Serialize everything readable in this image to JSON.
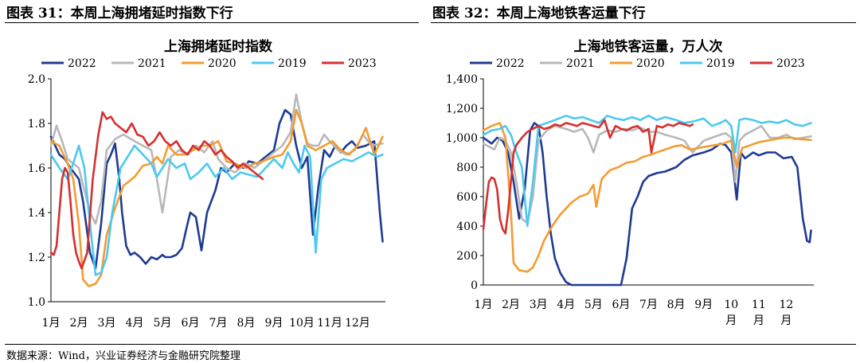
{
  "figures": [
    {
      "label": "图表 31：本周上海拥堵延时指数下行"
    },
    {
      "label": "图表 32：本周上海地铁客运量下行"
    }
  ],
  "source": "数据来源：Wind，兴业证券经济与金融研究院整理",
  "chart_data": [
    {
      "type": "line",
      "title": "上海拥堵延时指数",
      "xlabel": "",
      "ylabel": "",
      "ylim": [
        1.0,
        2.0
      ],
      "yticks": [
        "1.0",
        "1.2",
        "1.4",
        "1.6",
        "1.8",
        "2.0"
      ],
      "xticks": [
        "1月",
        "2月",
        "3月",
        "4月",
        "5月",
        "6月",
        "7月",
        "8月",
        "9月",
        "10月",
        "11月",
        "12月"
      ],
      "x_unit": "month (1.0 = Jan 1)",
      "legend_position": "top",
      "series": [
        {
          "name": "2022",
          "color": "#1f3a93",
          "x": [
            1.0,
            1.15,
            1.3,
            1.5,
            1.7,
            2.0,
            2.15,
            2.4,
            2.6,
            2.8,
            3.0,
            3.15,
            3.3,
            3.45,
            3.55,
            3.7,
            3.85,
            4.0,
            4.2,
            4.4,
            4.6,
            4.8,
            5.0,
            5.1,
            5.3,
            5.5,
            5.7,
            5.9,
            6.0,
            6.2,
            6.4,
            6.6,
            6.9,
            7.1,
            7.3,
            7.6,
            7.9,
            8.1,
            8.4,
            8.7,
            9.0,
            9.2,
            9.4,
            9.6,
            9.8,
            10.0,
            10.2,
            10.4,
            10.6,
            10.8,
            11.0,
            11.2,
            11.4,
            11.6,
            11.8,
            12.0,
            12.3,
            12.6,
            12.8,
            12.9
          ],
          "y": [
            1.74,
            1.7,
            1.66,
            1.64,
            1.6,
            1.55,
            1.45,
            1.22,
            1.15,
            1.35,
            1.62,
            1.66,
            1.71,
            1.55,
            1.4,
            1.25,
            1.21,
            1.22,
            1.2,
            1.17,
            1.2,
            1.19,
            1.21,
            1.2,
            1.2,
            1.21,
            1.24,
            1.35,
            1.4,
            1.38,
            1.23,
            1.4,
            1.5,
            1.6,
            1.58,
            1.62,
            1.6,
            1.63,
            1.62,
            1.65,
            1.68,
            1.8,
            1.86,
            1.84,
            1.7,
            1.6,
            1.65,
            1.3,
            1.52,
            1.68,
            1.65,
            1.7,
            1.67,
            1.7,
            1.72,
            1.69,
            1.7,
            1.72,
            1.4,
            1.27
          ]
        },
        {
          "name": "2021",
          "color": "#b8b8b8",
          "x": [
            1.0,
            1.2,
            1.4,
            1.6,
            1.8,
            2.0,
            2.2,
            2.4,
            2.6,
            2.8,
            3.0,
            3.3,
            3.6,
            4.0,
            4.3,
            4.6,
            4.8,
            5.0,
            5.3,
            5.6,
            5.9,
            6.2,
            6.5,
            6.8,
            7.0,
            7.3,
            7.6,
            8.0,
            8.3,
            8.6,
            9.0,
            9.3,
            9.6,
            9.8,
            10.0,
            10.2,
            10.4,
            10.6,
            10.8,
            11.0,
            11.3,
            11.6,
            11.9,
            12.2,
            12.5,
            12.9
          ],
          "y": [
            1.7,
            1.79,
            1.72,
            1.64,
            1.62,
            1.6,
            1.5,
            1.4,
            1.35,
            1.45,
            1.68,
            1.73,
            1.75,
            1.72,
            1.7,
            1.68,
            1.55,
            1.4,
            1.65,
            1.68,
            1.66,
            1.7,
            1.67,
            1.72,
            1.64,
            1.6,
            1.58,
            1.62,
            1.6,
            1.63,
            1.67,
            1.7,
            1.76,
            1.93,
            1.8,
            1.71,
            1.7,
            1.7,
            1.75,
            1.72,
            1.68,
            1.66,
            1.68,
            1.75,
            1.7,
            1.71
          ]
        },
        {
          "name": "2020",
          "color": "#f39c32",
          "x": [
            1.0,
            1.3,
            1.6,
            1.8,
            2.0,
            2.15,
            2.35,
            2.6,
            2.8,
            3.0,
            3.3,
            3.6,
            4.0,
            4.3,
            4.6,
            4.8,
            5.0,
            5.2,
            5.5,
            5.8,
            6.1,
            6.4,
            6.7,
            7.0,
            7.3,
            7.6,
            8.0,
            8.3,
            8.6,
            9.0,
            9.3,
            9.6,
            9.8,
            10.0,
            10.2,
            10.5,
            10.8,
            11.1,
            11.4,
            11.7,
            12.0,
            12.3,
            12.6,
            12.9
          ],
          "y": [
            1.72,
            1.7,
            1.62,
            1.55,
            1.35,
            1.1,
            1.07,
            1.08,
            1.12,
            1.3,
            1.42,
            1.52,
            1.56,
            1.61,
            1.62,
            1.65,
            1.62,
            1.7,
            1.66,
            1.66,
            1.68,
            1.7,
            1.7,
            1.72,
            1.63,
            1.62,
            1.6,
            1.62,
            1.63,
            1.65,
            1.66,
            1.72,
            1.86,
            1.8,
            1.7,
            1.68,
            1.7,
            1.72,
            1.68,
            1.66,
            1.7,
            1.78,
            1.66,
            1.74
          ]
        },
        {
          "name": "2019",
          "color": "#4cc9f0",
          "x": [
            1.0,
            1.3,
            1.6,
            1.8,
            2.0,
            2.2,
            2.4,
            2.6,
            2.8,
            3.0,
            3.2,
            3.5,
            3.8,
            4.0,
            4.3,
            4.6,
            4.8,
            5.0,
            5.2,
            5.5,
            5.8,
            6.0,
            6.3,
            6.6,
            6.9,
            7.2,
            7.5,
            7.8,
            8.1,
            8.4,
            8.7,
            9.0,
            9.3,
            9.5,
            9.7,
            9.9,
            10.1,
            10.3,
            10.5,
            10.7,
            10.9,
            11.2,
            11.5,
            11.8,
            12.1,
            12.4,
            12.7,
            12.9
          ],
          "y": [
            1.66,
            1.6,
            1.55,
            1.62,
            1.7,
            1.6,
            1.35,
            1.12,
            1.13,
            1.2,
            1.4,
            1.6,
            1.66,
            1.7,
            1.66,
            1.62,
            1.56,
            1.6,
            1.64,
            1.6,
            1.62,
            1.55,
            1.58,
            1.62,
            1.56,
            1.6,
            1.55,
            1.58,
            1.57,
            1.56,
            1.6,
            1.64,
            1.6,
            1.67,
            1.62,
            1.58,
            1.7,
            1.65,
            1.22,
            1.55,
            1.6,
            1.62,
            1.64,
            1.63,
            1.65,
            1.67,
            1.65,
            1.66
          ]
        },
        {
          "name": "2023",
          "color": "#d62f2f",
          "x": [
            1.0,
            1.1,
            1.2,
            1.3,
            1.4,
            1.5,
            1.6,
            1.7,
            1.8,
            1.9,
            2.0,
            2.1,
            2.3,
            2.5,
            2.7,
            2.85,
            3.0,
            3.15,
            3.3,
            3.5,
            3.7,
            3.9,
            4.1,
            4.3,
            4.5,
            4.7,
            4.9,
            5.1,
            5.3,
            5.5,
            5.7,
            5.9,
            6.1,
            6.3,
            6.5,
            6.7,
            6.9,
            7.1,
            7.3,
            7.5,
            7.7,
            7.9,
            8.1,
            8.3,
            8.5,
            8.6
          ],
          "y": [
            1.22,
            1.21,
            1.25,
            1.4,
            1.55,
            1.6,
            1.58,
            1.45,
            1.3,
            1.22,
            1.18,
            1.15,
            1.22,
            1.55,
            1.75,
            1.85,
            1.82,
            1.83,
            1.8,
            1.78,
            1.76,
            1.8,
            1.75,
            1.74,
            1.7,
            1.72,
            1.76,
            1.72,
            1.7,
            1.72,
            1.68,
            1.66,
            1.7,
            1.68,
            1.72,
            1.7,
            1.66,
            1.68,
            1.65,
            1.63,
            1.6,
            1.62,
            1.6,
            1.58,
            1.56,
            1.55
          ]
        }
      ]
    },
    {
      "type": "line",
      "title": "上海地铁客运量，万人次",
      "xlabel": "",
      "ylabel": "",
      "ylim": [
        0,
        1400
      ],
      "yticks": [
        "0",
        "200",
        "400",
        "600",
        "800",
        "1,000",
        "1,200",
        "1,400"
      ],
      "xticks": [
        [
          "1月"
        ],
        [
          "2月"
        ],
        [
          "3月"
        ],
        [
          "4月"
        ],
        [
          "5月"
        ],
        [
          "6月"
        ],
        [
          "7月"
        ],
        [
          "8月"
        ],
        [
          "9月"
        ],
        [
          "10",
          "月"
        ],
        [
          "11",
          "月"
        ],
        [
          "12",
          "月"
        ]
      ],
      "x_unit": "month (1.0 = Jan 1)",
      "legend_position": "top",
      "series": [
        {
          "name": "2022",
          "color": "#1f3a93",
          "x": [
            1.0,
            1.15,
            1.3,
            1.5,
            1.7,
            1.9,
            2.1,
            2.3,
            2.5,
            2.7,
            2.85,
            3.0,
            3.15,
            3.3,
            3.45,
            3.6,
            3.8,
            4.0,
            4.2,
            4.3,
            4.6,
            5.0,
            5.5,
            6.0,
            6.2,
            6.4,
            6.6,
            6.8,
            7.0,
            7.3,
            7.6,
            8.0,
            8.3,
            8.6,
            9.0,
            9.3,
            9.6,
            9.8,
            10.0,
            10.1,
            10.2,
            10.35,
            10.5,
            10.8,
            11.0,
            11.3,
            11.6,
            11.9,
            12.2,
            12.4,
            12.6,
            12.75,
            12.85,
            12.9
          ],
          "y": [
            1000,
            980,
            960,
            1000,
            980,
            900,
            700,
            450,
            650,
            1050,
            1100,
            1080,
            900,
            600,
            350,
            180,
            80,
            20,
            0,
            0,
            0,
            0,
            0,
            0,
            180,
            520,
            600,
            700,
            740,
            760,
            770,
            800,
            850,
            880,
            900,
            920,
            960,
            950,
            900,
            750,
            580,
            900,
            860,
            900,
            880,
            900,
            900,
            860,
            870,
            800,
            450,
            300,
            290,
            370
          ]
        },
        {
          "name": "2021",
          "color": "#b8b8b8",
          "x": [
            1.0,
            1.2,
            1.4,
            1.6,
            1.8,
            2.0,
            2.2,
            2.4,
            2.6,
            2.8,
            3.0,
            3.3,
            3.6,
            4.0,
            4.3,
            4.6,
            4.8,
            5.0,
            5.2,
            5.5,
            5.8,
            6.1,
            6.4,
            6.7,
            7.0,
            7.3,
            7.6,
            8.0,
            8.3,
            8.6,
            9.0,
            9.3,
            9.6,
            9.8,
            10.0,
            10.15,
            10.3,
            10.5,
            10.8,
            11.1,
            11.4,
            11.7,
            12.0,
            12.3,
            12.6,
            12.9
          ],
          "y": [
            960,
            940,
            920,
            1000,
            980,
            900,
            700,
            450,
            420,
            600,
            980,
            1050,
            1080,
            1060,
            1040,
            1060,
            1000,
            900,
            1020,
            1050,
            1040,
            1060,
            1050,
            1070,
            1040,
            1040,
            1020,
            1000,
            980,
            900,
            980,
            1000,
            1020,
            1030,
            1000,
            700,
            980,
            1020,
            1050,
            1080,
            1000,
            1000,
            1020,
            990,
            1000,
            1010
          ]
        },
        {
          "name": "2020",
          "color": "#f39c32",
          "x": [
            1.0,
            1.3,
            1.6,
            1.8,
            2.0,
            2.1,
            2.3,
            2.6,
            2.8,
            3.0,
            3.2,
            3.5,
            3.8,
            4.0,
            4.2,
            4.5,
            4.8,
            5.0,
            5.1,
            5.3,
            5.6,
            5.9,
            6.2,
            6.5,
            6.8,
            7.0,
            7.3,
            7.6,
            7.9,
            8.2,
            8.5,
            8.8,
            9.1,
            9.4,
            9.7,
            10.0,
            10.2,
            10.4,
            10.7,
            11.0,
            11.3,
            11.6,
            11.9,
            12.2,
            12.5,
            12.9
          ],
          "y": [
            1050,
            1080,
            1100,
            1000,
            500,
            150,
            100,
            90,
            120,
            200,
            300,
            400,
            480,
            520,
            560,
            600,
            620,
            680,
            530,
            720,
            780,
            800,
            830,
            840,
            870,
            880,
            900,
            920,
            940,
            950,
            920,
            930,
            940,
            950,
            960,
            980,
            800,
            930,
            950,
            970,
            980,
            990,
            1000,
            1000,
            990,
            985
          ]
        },
        {
          "name": "2019",
          "color": "#4cc9f0",
          "x": [
            1.0,
            1.3,
            1.6,
            1.8,
            2.0,
            2.2,
            2.4,
            2.6,
            2.8,
            3.0,
            3.3,
            3.6,
            4.0,
            4.3,
            4.6,
            4.9,
            5.2,
            5.5,
            5.8,
            6.1,
            6.4,
            6.7,
            7.0,
            7.3,
            7.6,
            8.0,
            8.3,
            8.6,
            9.0,
            9.3,
            9.6,
            9.8,
            10.0,
            10.15,
            10.3,
            10.5,
            10.8,
            11.1,
            11.4,
            11.7,
            12.0,
            12.3,
            12.6,
            12.9
          ],
          "y": [
            1020,
            1050,
            1060,
            1080,
            1020,
            900,
            800,
            400,
            700,
            1080,
            1100,
            1120,
            1150,
            1130,
            1140,
            1120,
            1100,
            1150,
            1130,
            1120,
            1140,
            1120,
            1150,
            1120,
            1140,
            1120,
            1100,
            1110,
            1130,
            1080,
            1100,
            1120,
            1080,
            900,
            1120,
            1130,
            1120,
            1100,
            1110,
            1100,
            1120,
            1090,
            1080,
            1100
          ]
        },
        {
          "name": "2023",
          "color": "#d62f2f",
          "x": [
            1.0,
            1.1,
            1.2,
            1.3,
            1.4,
            1.5,
            1.6,
            1.7,
            1.8,
            1.9,
            2.0,
            2.1,
            2.2,
            2.4,
            2.6,
            2.8,
            3.0,
            3.2,
            3.4,
            3.6,
            3.8,
            4.0,
            4.2,
            4.4,
            4.6,
            4.8,
            5.0,
            5.2,
            5.4,
            5.6,
            5.8,
            6.0,
            6.2,
            6.4,
            6.6,
            6.8,
            7.0,
            7.1,
            7.3,
            7.5,
            7.7,
            7.9,
            8.1,
            8.3,
            8.5,
            8.6
          ],
          "y": [
            380,
            550,
            700,
            730,
            720,
            650,
            450,
            380,
            350,
            500,
            700,
            900,
            950,
            1000,
            1040,
            1060,
            1080,
            1060,
            1070,
            1090,
            1080,
            1100,
            1090,
            1080,
            1100,
            1090,
            1080,
            1070,
            1120,
            1000,
            1080,
            1060,
            1050,
            1070,
            1080,
            1040,
            1060,
            900,
            1080,
            1070,
            1090,
            1080,
            1100,
            1090,
            1080,
            1090
          ]
        }
      ]
    }
  ]
}
